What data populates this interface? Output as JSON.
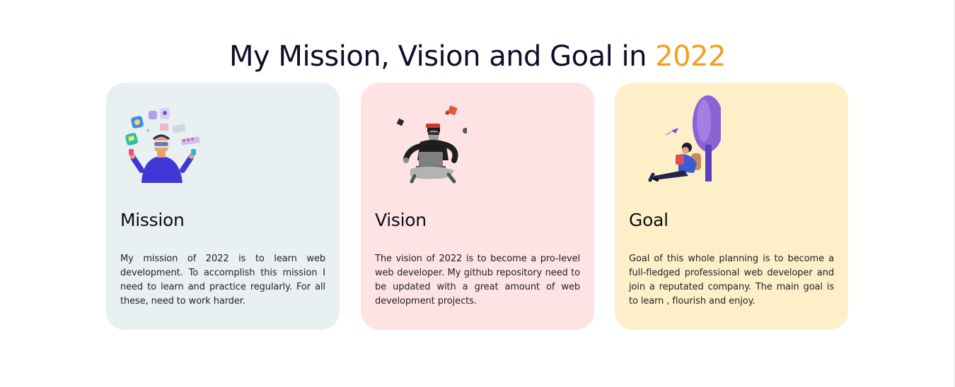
{
  "heading": {
    "text": "My Mission, Vision and Goal in ",
    "accent": "2022"
  },
  "colors": {
    "accent": "#f59e1c",
    "mission_bg": "#e8f0f2",
    "vision_bg": "#fde3e4",
    "goal_bg": "#fdf0c9"
  },
  "cards": [
    {
      "title": "Mission",
      "icon": "person-vr-apps-illustration",
      "text": "My mission of 2022 is to learn web development. To accomplish this mission I need to learn and practice regularly. For all these, need to work harder."
    },
    {
      "title": "Vision",
      "icon": "person-laptop-cubes-illustration",
      "text": "The vision of 2022 is to become a pro-level web developer. My github repository need to be updated with a great amount of web development projects."
    },
    {
      "title": "Goal",
      "icon": "person-reading-tree-illustration",
      "text": "Goal of this whole planning is to become a full-fledged professional web developer and join a reputated company. The main goal is to learn , flourish and enjoy."
    }
  ]
}
